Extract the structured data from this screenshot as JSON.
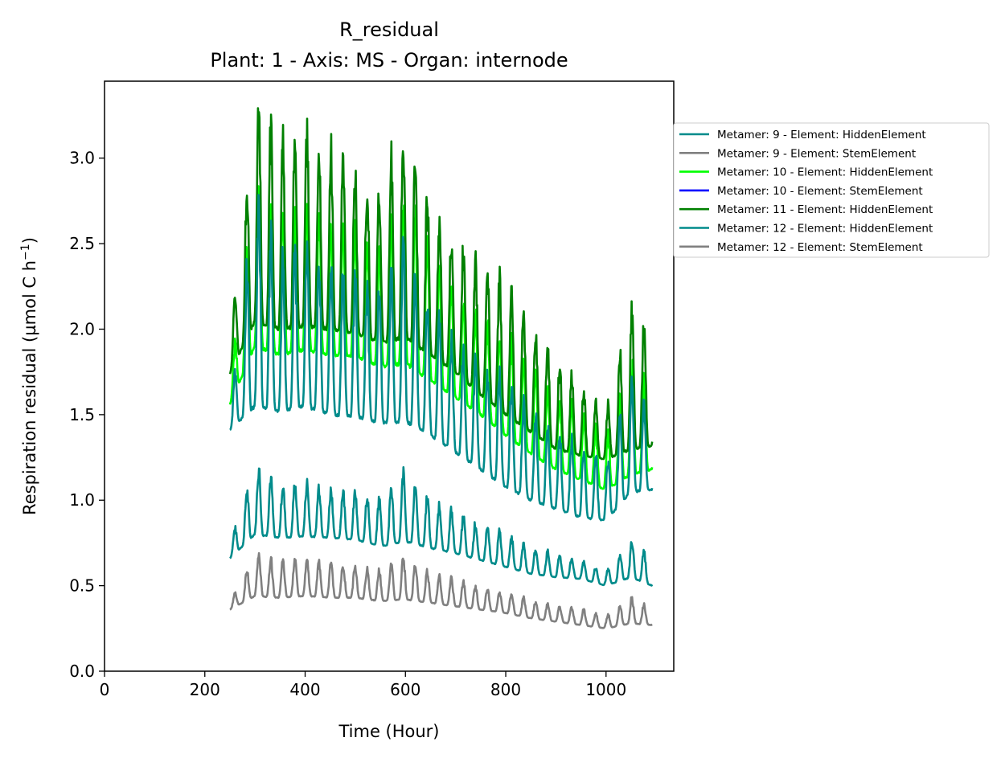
{
  "chart_data": {
    "type": "line",
    "title": "R_residual",
    "subtitle": "Plant: 1 - Axis: MS - Organ: internode",
    "xlabel": "Time (Hour)",
    "ylabel_main": "Respiration residual (µmol C h",
    "ylabel_sup": "−1",
    "ylabel_end": ")",
    "xlim": [
      0,
      1135
    ],
    "ylim": [
      0,
      3.45
    ],
    "xticks": [
      0,
      200,
      400,
      600,
      800,
      1000
    ],
    "yticks": [
      0.0,
      0.5,
      1.0,
      1.5,
      2.0,
      2.5,
      3.0
    ],
    "xtick_labels": [
      "0",
      "200",
      "400",
      "600",
      "800",
      "1000"
    ],
    "ytick_labels": [
      "0.0",
      "0.5",
      "1.0",
      "1.5",
      "2.0",
      "2.5",
      "3.0"
    ],
    "x_range": [
      250,
      1092
    ],
    "legend_position": "outside-right-top",
    "series": [
      {
        "name": "Metamer: 9 - Element: HiddenElement",
        "color": "#008b8b",
        "x": [
          250,
          300,
          350,
          400,
          450,
          500,
          550,
          600,
          650,
          700,
          750,
          800,
          850,
          900,
          950,
          1000,
          1050,
          1092
        ],
        "base": [
          0.66,
          0.8,
          0.78,
          0.79,
          0.78,
          0.77,
          0.73,
          0.76,
          0.72,
          0.69,
          0.65,
          0.61,
          0.57,
          0.55,
          0.54,
          0.5,
          0.55,
          0.5
        ],
        "peak": [
          0.74,
          1.2,
          1.08,
          1.1,
          1.06,
          1.04,
          1.0,
          1.16,
          1.0,
          0.92,
          0.85,
          0.8,
          0.72,
          0.68,
          0.64,
          0.58,
          0.76,
          0.66
        ]
      },
      {
        "name": "Metamer: 9 - Element: StemElement",
        "color": "#808080",
        "x": [
          250,
          300,
          350,
          400,
          450,
          500,
          550,
          600,
          650,
          700,
          750,
          800,
          850,
          900,
          950,
          1000,
          1050,
          1092
        ],
        "base": [
          0.36,
          0.44,
          0.43,
          0.44,
          0.43,
          0.43,
          0.41,
          0.42,
          0.4,
          0.38,
          0.36,
          0.34,
          0.31,
          0.29,
          0.27,
          0.25,
          0.28,
          0.27
        ],
        "peak": [
          0.4,
          0.68,
          0.64,
          0.65,
          0.62,
          0.61,
          0.58,
          0.66,
          0.57,
          0.53,
          0.48,
          0.46,
          0.41,
          0.38,
          0.36,
          0.32,
          0.43,
          0.36
        ]
      },
      {
        "name": "Metamer: 10 - Element: HiddenElement",
        "color": "#00ff00",
        "x": [
          250,
          300,
          350,
          400,
          450,
          500,
          550,
          600,
          650,
          700,
          750,
          800,
          850,
          900,
          950,
          1000,
          1050,
          1092
        ],
        "base": [
          1.56,
          1.9,
          1.85,
          1.88,
          1.85,
          1.84,
          1.78,
          1.8,
          1.7,
          1.6,
          1.5,
          1.38,
          1.27,
          1.18,
          1.12,
          1.06,
          1.15,
          1.18
        ],
        "peak": [
          1.7,
          2.8,
          2.6,
          2.7,
          2.6,
          2.55,
          2.45,
          2.85,
          2.45,
          2.2,
          2.05,
          1.95,
          1.75,
          1.6,
          1.5,
          1.35,
          1.8,
          1.6
        ]
      },
      {
        "name": "Metamer: 10 - Element: StemElement",
        "color": "#0000ff",
        "x": [],
        "base": [],
        "peak": []
      },
      {
        "name": "Metamer: 11 - Element: HiddenElement",
        "color": "#008000",
        "x": [
          250,
          300,
          350,
          400,
          450,
          500,
          550,
          600,
          650,
          700,
          750,
          800,
          850,
          900,
          950,
          1000,
          1050,
          1092
        ],
        "base": [
          1.74,
          2.05,
          2.0,
          2.02,
          2.0,
          1.98,
          1.92,
          1.95,
          1.85,
          1.75,
          1.62,
          1.5,
          1.4,
          1.3,
          1.26,
          1.24,
          1.3,
          1.32
        ],
        "peak": [
          1.92,
          3.3,
          3.05,
          3.1,
          3.0,
          2.9,
          2.8,
          3.18,
          2.7,
          2.5,
          2.35,
          2.25,
          2.0,
          1.8,
          1.65,
          1.5,
          2.1,
          2.0
        ]
      },
      {
        "name": "Metamer: 12 - Element: HiddenElement",
        "color": "#008b8b",
        "x": [
          250,
          300,
          350,
          400,
          450,
          500,
          550,
          600,
          650,
          700,
          750,
          800,
          850,
          900,
          950,
          1000,
          1050,
          1092
        ],
        "base": [
          1.41,
          1.55,
          1.52,
          1.55,
          1.5,
          1.49,
          1.45,
          1.46,
          1.38,
          1.28,
          1.18,
          1.08,
          1.0,
          0.95,
          0.9,
          0.88,
          1.05,
          1.06
        ],
        "peak": [
          1.5,
          2.73,
          2.4,
          2.45,
          2.35,
          2.3,
          2.2,
          2.5,
          2.1,
          1.9,
          1.8,
          1.7,
          1.5,
          1.4,
          1.3,
          1.2,
          1.7,
          1.45
        ]
      },
      {
        "name": "Metamer: 12 - Element: StemElement",
        "color": "#808080",
        "x": [],
        "base": [],
        "peak": []
      }
    ]
  }
}
